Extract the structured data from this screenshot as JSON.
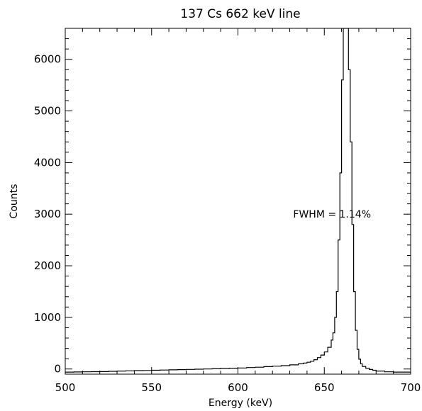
{
  "chart_data": {
    "type": "line",
    "style": "histogram-step",
    "title": "137 Cs 662 keV line",
    "xlabel": "Energy (keV)",
    "ylabel": "Counts",
    "xlim": [
      500,
      700
    ],
    "ylim": [
      -100,
      6600
    ],
    "xticks": [
      500,
      550,
      600,
      650,
      700
    ],
    "yticks": [
      0,
      1000,
      2000,
      3000,
      4000,
      5000,
      6000
    ],
    "grid": false,
    "annotation": {
      "text": "FWHM = 1.14%",
      "x": 632,
      "y": 3000
    },
    "series": [
      {
        "x": [
          500,
          505,
          510,
          515,
          520,
          525,
          530,
          535,
          540,
          545,
          550,
          555,
          560,
          565,
          570,
          575,
          580,
          585,
          590,
          595,
          600,
          605,
          610,
          615,
          620,
          625,
          630,
          635,
          638,
          640,
          642,
          644,
          646,
          648,
          650,
          652,
          654,
          655,
          656,
          657,
          658,
          659,
          660,
          661,
          662,
          663,
          664,
          665,
          666,
          667,
          668,
          669,
          670,
          671,
          672,
          674,
          676,
          678,
          680,
          685,
          690,
          695,
          700
        ],
        "y": [
          -60,
          -58,
          -55,
          -52,
          -50,
          -45,
          -40,
          -36,
          -32,
          -28,
          -25,
          -20,
          -16,
          -12,
          -8,
          -4,
          0,
          5,
          10,
          15,
          20,
          28,
          35,
          45,
          55,
          65,
          80,
          100,
          115,
          130,
          150,
          180,
          220,
          270,
          330,
          420,
          560,
          700,
          1000,
          1500,
          2500,
          3800,
          5600,
          6600,
          6600,
          6600,
          5800,
          4400,
          2800,
          1500,
          750,
          380,
          190,
          100,
          50,
          15,
          -10,
          -25,
          -40,
          -55,
          -60,
          -60,
          -60
        ]
      }
    ]
  }
}
